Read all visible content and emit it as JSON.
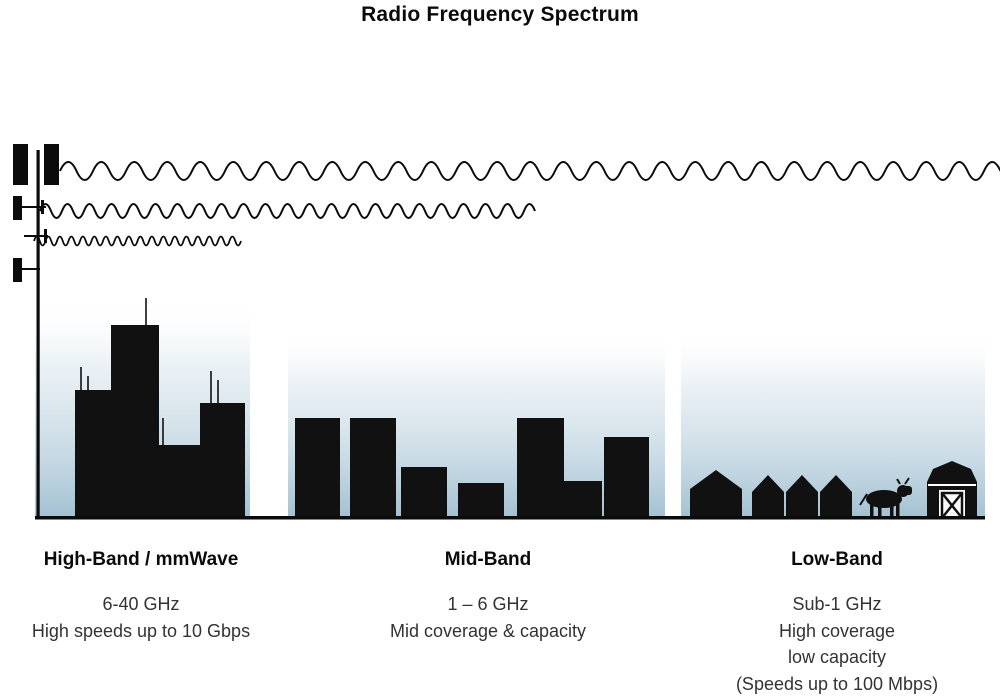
{
  "diagram": {
    "title": "Radio Frequency Spectrum",
    "bands": [
      {
        "name": "High-Band / mmWave",
        "lines": [
          "6-40 GHz",
          "High speeds up to 10 Gbps"
        ]
      },
      {
        "name": "Mid-Band",
        "lines": [
          "1 – 6 GHz",
          "Mid coverage & capacity"
        ]
      },
      {
        "name": "Low-Band",
        "lines": [
          "Sub-1 GHz",
          "High coverage",
          "low capacity",
          "(Speeds up to 100 Mbps)"
        ]
      }
    ],
    "icons": {
      "cell_tower": "cell-tower-icon",
      "high_frequency_wave": "high-frequency-wave",
      "mid_frequency_wave": "mid-frequency-wave",
      "low_frequency_wave": "low-frequency-wave",
      "skyscrapers": "skyscrapers-silhouette",
      "mid_rise_buildings": "mid-rise-buildings-silhouette",
      "houses": "houses-silhouette",
      "cow": "cow-icon",
      "barn": "barn-icon"
    },
    "colors": {
      "silhouette": "#111111",
      "heading_text": "#0b0b0b",
      "body_text": "#333333",
      "haze_bottom": "#a3c1d2"
    }
  }
}
